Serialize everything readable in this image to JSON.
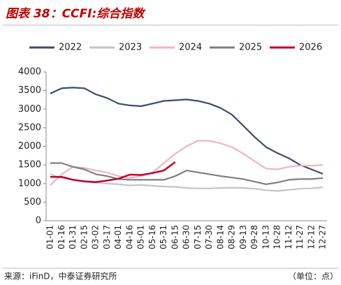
{
  "chart_data": {
    "type": "line",
    "title": "图表 38：CCFI:综合指数",
    "categories": [
      "01-01",
      "01-16",
      "01-31",
      "02-15",
      "03-02",
      "03-17",
      "04-01",
      "04-16",
      "05-01",
      "05-16",
      "05-31",
      "06-15",
      "06-30",
      "07-15",
      "07-30",
      "08-14",
      "08-29",
      "09-13",
      "09-28",
      "10-13",
      "10-28",
      "11-12",
      "11-27",
      "12-12",
      "12-27"
    ],
    "series": [
      {
        "name": "2022",
        "color": "#3d4c68",
        "values": [
          3420,
          3560,
          3580,
          3560,
          3400,
          3300,
          3150,
          3100,
          3080,
          3150,
          3220,
          3240,
          3260,
          3220,
          3150,
          3030,
          2850,
          2550,
          2250,
          1980,
          1820,
          1680,
          1500,
          1380,
          1260
        ]
      },
      {
        "name": "2023",
        "color": "#c4c4c4",
        "values": [
          1250,
          1150,
          1100,
          1050,
          1020,
          1000,
          980,
          950,
          960,
          940,
          920,
          910,
          880,
          870,
          870,
          880,
          890,
          880,
          860,
          820,
          800,
          830,
          860,
          870,
          900
        ]
      },
      {
        "name": "2024",
        "color": "#f2b3c0",
        "values": [
          950,
          1250,
          1450,
          1420,
          1350,
          1300,
          1200,
          1150,
          1200,
          1300,
          1550,
          1800,
          2000,
          2150,
          2150,
          2080,
          1980,
          1800,
          1600,
          1400,
          1380,
          1450,
          1480,
          1480,
          1500
        ]
      },
      {
        "name": "2025",
        "color": "#7f7f7f",
        "values": [
          1550,
          1550,
          1450,
          1380,
          1250,
          1200,
          1120,
          1100,
          1100,
          1100,
          1100,
          1200,
          1350,
          1300,
          1250,
          1200,
          1160,
          1120,
          1050,
          980,
          1030,
          1100,
          1120,
          1120,
          1150
        ]
      },
      {
        "name": "2026",
        "color": "#c0002f",
        "values": [
          1180,
          1180,
          1100,
          1060,
          1040,
          1080,
          1130,
          1240,
          1230,
          1280,
          1350,
          1580,
          null,
          null,
          null,
          null,
          null,
          null,
          null,
          null,
          null,
          null,
          null,
          null,
          null
        ]
      }
    ],
    "ylim": [
      0,
      4000
    ],
    "yticks": [
      0,
      500,
      1000,
      1500,
      2000,
      2500,
      3000,
      3500,
      4000
    ],
    "legend": "top",
    "grid": false
  },
  "source": "来源：iFinD，中泰证券研究所",
  "unit": "（单位：点）"
}
